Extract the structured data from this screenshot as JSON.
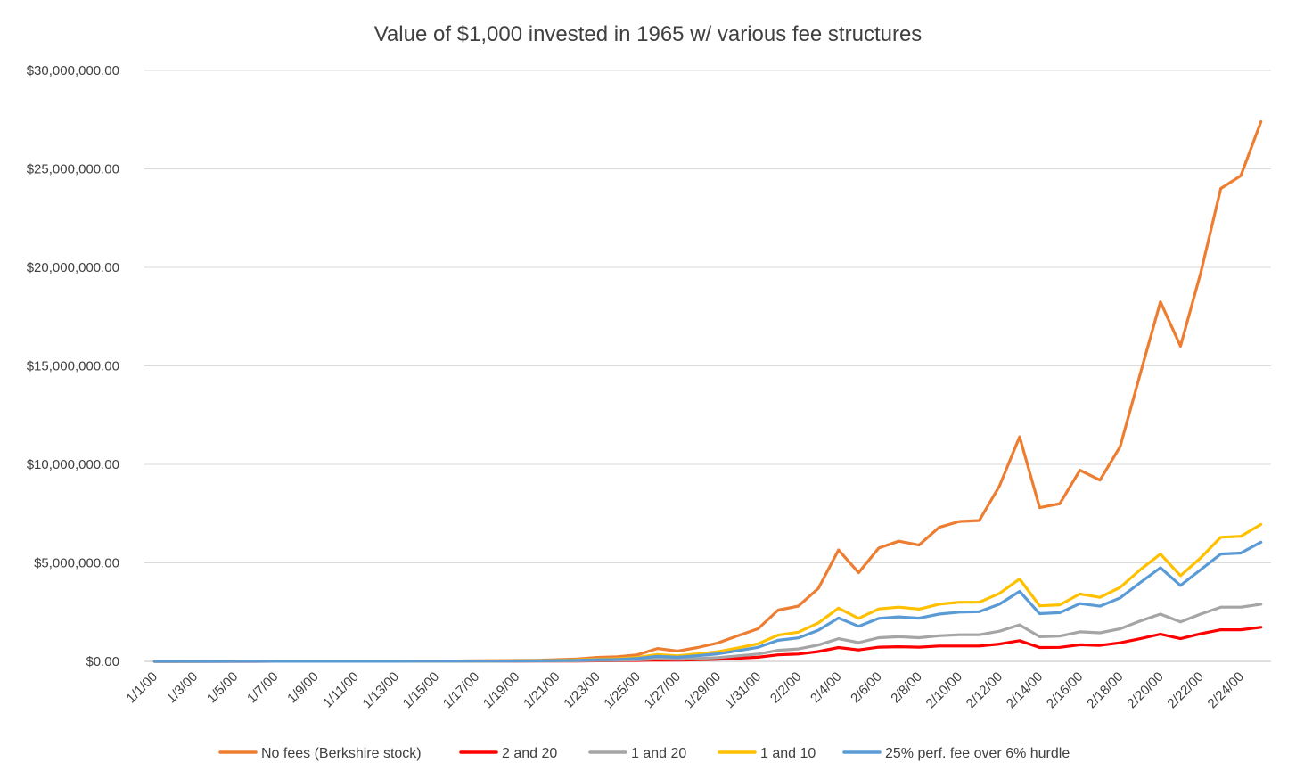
{
  "chart_data": {
    "type": "line",
    "title": "Value of $1,000 invested in 1965 w/ various fee structures",
    "xlabel": "",
    "ylabel": "",
    "ylim": [
      0,
      30000000
    ],
    "y_ticks": [
      "$0.00",
      "$5,000,000.00",
      "$10,000,000.00",
      "$15,000,000.00",
      "$20,000,000.00",
      "$25,000,000.00",
      "$30,000,000.00"
    ],
    "y_tick_values": [
      0,
      5000000,
      10000000,
      15000000,
      20000000,
      25000000,
      30000000
    ],
    "grid": true,
    "legend_position": "bottom",
    "categories": [
      "1/1/00",
      "1/2/00",
      "1/3/00",
      "1/4/00",
      "1/5/00",
      "1/6/00",
      "1/7/00",
      "1/8/00",
      "1/9/00",
      "1/10/00",
      "1/11/00",
      "1/12/00",
      "1/13/00",
      "1/14/00",
      "1/15/00",
      "1/16/00",
      "1/17/00",
      "1/18/00",
      "1/19/00",
      "1/20/00",
      "1/21/00",
      "1/22/00",
      "1/23/00",
      "1/24/00",
      "1/25/00",
      "1/26/00",
      "1/27/00",
      "1/28/00",
      "1/29/00",
      "1/30/00",
      "1/31/00",
      "2/1/00",
      "2/2/00",
      "2/3/00",
      "2/4/00",
      "2/5/00",
      "2/6/00",
      "2/7/00",
      "2/8/00",
      "2/9/00",
      "2/10/00",
      "2/11/00",
      "2/12/00",
      "2/13/00",
      "2/14/00",
      "2/15/00",
      "2/16/00",
      "2/17/00",
      "2/18/00",
      "2/19/00",
      "2/20/00",
      "2/21/00",
      "2/22/00",
      "2/23/00",
      "2/24/00",
      "2/25/00"
    ],
    "x_tick_labels": [
      "1/1/00",
      "1/3/00",
      "1/5/00",
      "1/7/00",
      "1/9/00",
      "1/11/00",
      "1/13/00",
      "1/15/00",
      "1/17/00",
      "1/19/00",
      "1/21/00",
      "1/23/00",
      "1/25/00",
      "1/27/00",
      "1/29/00",
      "1/31/00",
      "2/2/00",
      "2/4/00",
      "2/6/00",
      "2/8/00",
      "2/10/00",
      "2/12/00",
      "2/14/00",
      "2/16/00",
      "2/18/00",
      "2/20/00",
      "2/22/00",
      "2/24/00"
    ],
    "series": [
      {
        "name": "No fees (Berkshire stock)",
        "color": "#ED7D31",
        "values": [
          1000,
          2000,
          3000,
          4000,
          5000,
          5000,
          6000,
          7000,
          7000,
          8000,
          9000,
          10000,
          11000,
          12000,
          14000,
          18000,
          30000,
          36000,
          43000,
          55000,
          85000,
          120000,
          200000,
          230000,
          330000,
          650000,
          520000,
          700000,
          930000,
          1300000,
          1650000,
          2600000,
          2800000,
          3700000,
          5650000,
          4500000,
          5750000,
          6100000,
          5900000,
          6800000,
          7100000,
          7150000,
          8900000,
          11400000,
          7800000,
          8000000,
          9700000,
          9200000,
          10900000,
          14600000,
          18250000,
          16000000,
          19700000,
          24000000,
          24650000,
          27400000
        ]
      },
      {
        "name": "2 and 20",
        "color": "#FF0000",
        "values": [
          1000,
          1000,
          2000,
          2000,
          2000,
          2000,
          2500,
          2500,
          3000,
          3000,
          3500,
          4000,
          4000,
          4500,
          5000,
          6000,
          8000,
          9000,
          10000,
          12000,
          16000,
          20000,
          28000,
          30000,
          45000,
          70000,
          60000,
          80000,
          110000,
          160000,
          210000,
          330000,
          370000,
          500000,
          700000,
          580000,
          720000,
          740000,
          720000,
          780000,
          780000,
          780000,
          880000,
          1050000,
          700000,
          710000,
          840000,
          810000,
          940000,
          1150000,
          1380000,
          1150000,
          1400000,
          1600000,
          1600000,
          1730000
        ]
      },
      {
        "name": "1 and 20",
        "color": "#A5A5A5",
        "values": [
          1000,
          1000,
          2000,
          2000,
          2000,
          2500,
          2500,
          3000,
          3000,
          3500,
          4000,
          4500,
          5000,
          5500,
          6000,
          7000,
          9000,
          11000,
          13000,
          16000,
          22000,
          29000,
          43000,
          48000,
          72000,
          120000,
          100000,
          140000,
          190000,
          280000,
          370000,
          560000,
          630000,
          830000,
          1150000,
          950000,
          1200000,
          1250000,
          1200000,
          1300000,
          1350000,
          1350000,
          1530000,
          1850000,
          1250000,
          1280000,
          1500000,
          1450000,
          1650000,
          2050000,
          2400000,
          2000000,
          2400000,
          2750000,
          2750000,
          2900000
        ]
      },
      {
        "name": "1 and 10",
        "color": "#FFC000",
        "values": [
          1000,
          1500,
          2000,
          2500,
          3000,
          3000,
          3500,
          4000,
          4500,
          5000,
          6000,
          7000,
          8000,
          9000,
          11000,
          14000,
          19000,
          24000,
          30000,
          38000,
          55000,
          75000,
          115000,
          130000,
          200000,
          350000,
          280000,
          380000,
          490000,
          680000,
          890000,
          1330000,
          1480000,
          1950000,
          2700000,
          2180000,
          2660000,
          2750000,
          2650000,
          2900000,
          3000000,
          3000000,
          3450000,
          4180000,
          2820000,
          2870000,
          3420000,
          3250000,
          3750000,
          4650000,
          5450000,
          4350000,
          5250000,
          6300000,
          6350000,
          6950000
        ]
      },
      {
        "name": "25% perf. fee over 6% hurdle",
        "color": "#5B9BD5",
        "values": [
          1000,
          1000,
          1500,
          2000,
          2500,
          2500,
          3000,
          3500,
          4000,
          4500,
          5000,
          6000,
          6500,
          7500,
          9000,
          11000,
          15000,
          19000,
          23000,
          29000,
          42000,
          56000,
          86000,
          97000,
          150000,
          260000,
          210000,
          290000,
          380000,
          540000,
          710000,
          1070000,
          1190000,
          1580000,
          2200000,
          1780000,
          2180000,
          2260000,
          2190000,
          2400000,
          2500000,
          2520000,
          2900000,
          3550000,
          2420000,
          2470000,
          2930000,
          2800000,
          3220000,
          4000000,
          4750000,
          3850000,
          4650000,
          5450000,
          5500000,
          6050000
        ]
      }
    ]
  }
}
